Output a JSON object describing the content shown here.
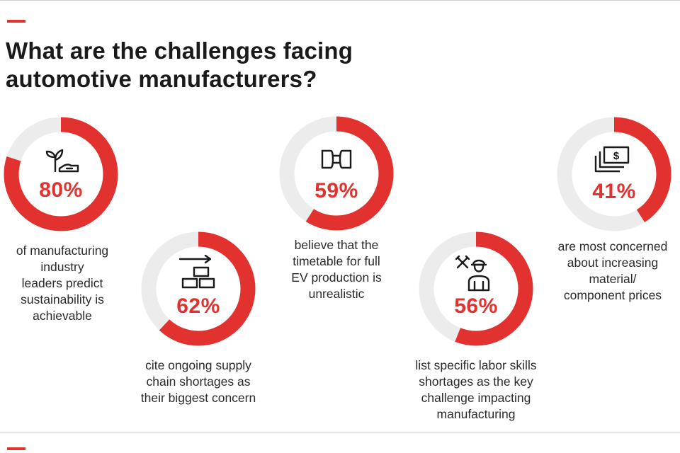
{
  "title_lines": [
    "What are the challenges facing",
    "automotive manufacturers?"
  ],
  "colors": {
    "accent": "#e2322f",
    "track": "#ececec",
    "icon": "#1a1a1a"
  },
  "chart_data": {
    "type": "pie",
    "style": "donut",
    "items": [
      {
        "value": 80,
        "label": "80%",
        "icon": "sustainability-sprout-hand-icon",
        "caption_lines": [
          "of manufacturing",
          "industry",
          "leaders predict",
          "sustainability is",
          "achievable"
        ]
      },
      {
        "value": 62,
        "label": "62%",
        "icon": "supply-chain-boxes-icon",
        "caption_lines": [
          "cite ongoing supply",
          "chain shortages as",
          "their biggest concern"
        ]
      },
      {
        "value": 59,
        "label": "59%",
        "icon": "ev-plug-icon",
        "caption_lines": [
          "believe that the",
          "timetable for full",
          "EV production is",
          "unrealistic"
        ]
      },
      {
        "value": 56,
        "label": "56%",
        "icon": "skilled-worker-icon",
        "caption_lines": [
          "list specific labor skills",
          "shortages as the key",
          "challenge impacting",
          "manufacturing"
        ]
      },
      {
        "value": 41,
        "label": "41%",
        "icon": "money-stack-icon",
        "caption_lines": [
          "are most concerned",
          "about increasing",
          "material/",
          "component prices"
        ]
      }
    ]
  }
}
